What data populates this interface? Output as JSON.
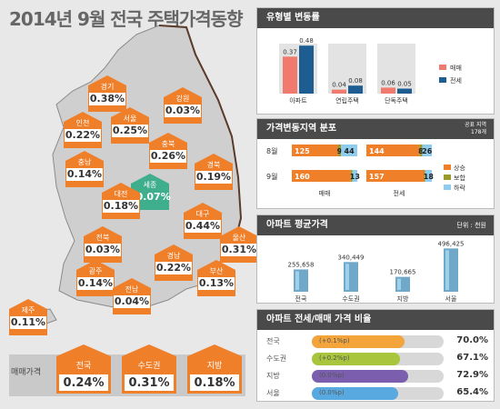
{
  "title": "2014년 9월 전국 주택가격동향",
  "colors": {
    "orange": "#f07f2a",
    "green": "#3fae8c",
    "navy": "#1d5d91",
    "salmon": "#f07a6e",
    "lightblue": "#8fcdee",
    "olive": "#9a9a2a",
    "gray": "#d5d5d5"
  },
  "map": {
    "regions": [
      {
        "name": "경기",
        "value": "0.38%"
      },
      {
        "name": "강원",
        "value": "0.03%"
      },
      {
        "name": "인천",
        "value": "0.22%"
      },
      {
        "name": "서울",
        "value": "0.25%"
      },
      {
        "name": "충북",
        "value": "0.26%"
      },
      {
        "name": "충남",
        "value": "0.14%"
      },
      {
        "name": "세종",
        "value": "-0.07%"
      },
      {
        "name": "경북",
        "value": "0.19%"
      },
      {
        "name": "대전",
        "value": "0.18%"
      },
      {
        "name": "대구",
        "value": "0.44%"
      },
      {
        "name": "전북",
        "value": "0.03%"
      },
      {
        "name": "울산",
        "value": "0.31%"
      },
      {
        "name": "경남",
        "value": "0.22%"
      },
      {
        "name": "광주",
        "value": "0.14%"
      },
      {
        "name": "부산",
        "value": "0.13%"
      },
      {
        "name": "전남",
        "value": "0.04%"
      },
      {
        "name": "제주",
        "value": "0.11%"
      }
    ],
    "summary_label": "매매가격",
    "summary": [
      {
        "name": "전국",
        "value": "0.24%"
      },
      {
        "name": "수도권",
        "value": "0.31%"
      },
      {
        "name": "지방",
        "value": "0.18%"
      }
    ]
  },
  "panel1": {
    "title": "유형별 변동률",
    "legend": [
      "매매",
      "전세"
    ]
  },
  "panel2": {
    "title": "가격변동지역 분포",
    "note1": "공표 지역",
    "note2": "178개",
    "rows": [
      "8월",
      "9월"
    ],
    "col_labels": [
      "매매",
      "전세"
    ],
    "legend": [
      "상승",
      "보합",
      "하락"
    ]
  },
  "panel3": {
    "title": "아파트 평균가격",
    "unit": "단위 : 천원"
  },
  "panel4": {
    "title": "아파트 전세/매매 가격 비율",
    "rows": [
      {
        "name": "전국",
        "change": "(+0.1%p)",
        "value": "70.0%",
        "pct": 70.0,
        "color": "#f3a43a"
      },
      {
        "name": "수도권",
        "change": "(+0.2%p)",
        "value": "67.1%",
        "pct": 67.1,
        "color": "#a9c53d"
      },
      {
        "name": "지방",
        "change": "(0.0%p)",
        "value": "72.9%",
        "pct": 72.9,
        "color": "#7b5fae"
      },
      {
        "name": "서울",
        "change": "(0.0%p)",
        "value": "65.4%",
        "pct": 65.4,
        "color": "#58a9e0"
      }
    ]
  },
  "chart_data": [
    {
      "type": "bar",
      "categories": [
        "아파트",
        "연립주택",
        "단독주택"
      ],
      "series": [
        {
          "name": "매매",
          "values": [
            0.37,
            0.04,
            0.06
          ]
        },
        {
          "name": "전세",
          "values": [
            0.48,
            0.08,
            0.05
          ]
        }
      ],
      "value_labels": [
        [
          "0.37",
          "0.04",
          "0.06"
        ],
        [
          "0.48",
          "0.08",
          "0.05"
        ]
      ],
      "ylim": [
        0,
        0.5
      ]
    },
    {
      "type": "bar",
      "stacked": true,
      "orientation": "horizontal",
      "categories": [
        "8월 매매",
        "9월 매매",
        "8월 전세",
        "9월 전세"
      ],
      "series": [
        {
          "name": "상승",
          "values": [
            125,
            160,
            144,
            157
          ]
        },
        {
          "name": "보합",
          "values": [
            9,
            5,
            8,
            3
          ]
        },
        {
          "name": "하락",
          "values": [
            44,
            13,
            26,
            18
          ]
        }
      ],
      "value_labels": [
        [
          "125",
          "160",
          "144",
          "157"
        ],
        [
          "9",
          "",
          "8",
          ""
        ],
        [
          "44",
          "13",
          "26",
          "18"
        ]
      ]
    },
    {
      "type": "bar",
      "categories": [
        "전국",
        "수도권",
        "지방",
        "서울"
      ],
      "values": [
        255658,
        340449,
        170665,
        496425
      ],
      "value_labels": [
        "255,658",
        "340,449",
        "170,665",
        "496,425"
      ]
    }
  ]
}
